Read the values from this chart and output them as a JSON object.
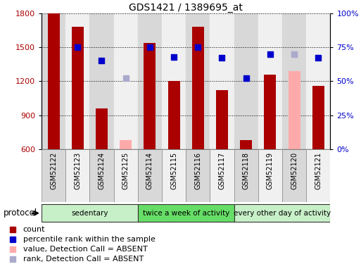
{
  "title": "GDS1421 / 1389695_at",
  "samples": [
    "GSM52122",
    "GSM52123",
    "GSM52124",
    "GSM52125",
    "GSM52114",
    "GSM52115",
    "GSM52116",
    "GSM52117",
    "GSM52118",
    "GSM52119",
    "GSM52120",
    "GSM52121"
  ],
  "count_values": [
    1800,
    1680,
    960,
    null,
    1540,
    1200,
    1680,
    1120,
    680,
    1260,
    null,
    1160
  ],
  "count_absent_values": [
    null,
    null,
    null,
    680,
    null,
    null,
    null,
    null,
    null,
    null,
    1290,
    null
  ],
  "rank_values": [
    null,
    75,
    65,
    null,
    75,
    68,
    75,
    67,
    52,
    70,
    null,
    67
  ],
  "rank_absent_values": [
    null,
    null,
    null,
    52,
    null,
    null,
    null,
    null,
    null,
    null,
    70,
    null
  ],
  "ylim_left": [
    600,
    1800
  ],
  "ylim_right": [
    0,
    100
  ],
  "yticks_left": [
    600,
    900,
    1200,
    1500,
    1800
  ],
  "yticks_right": [
    0,
    25,
    50,
    75,
    100
  ],
  "ytick_labels_right": [
    "0%",
    "25%",
    "50%",
    "75%",
    "100%"
  ],
  "groups": [
    {
      "label": "sedentary",
      "start": 0,
      "end": 3,
      "color": "#c8f0c8"
    },
    {
      "label": "twice a week of activity",
      "start": 4,
      "end": 7,
      "color": "#66dd66"
    },
    {
      "label": "every other day of activity",
      "start": 8,
      "end": 11,
      "color": "#c8f0c8"
    }
  ],
  "col_bg_even": "#d8d8d8",
  "col_bg_odd": "#f0f0f0",
  "count_color": "#aa0000",
  "count_absent_color": "#ffaaaa",
  "rank_color": "#0000cc",
  "rank_absent_color": "#aaaacc",
  "grid_color": "#000000",
  "bg_color": "#ffffff",
  "legend_items": [
    {
      "label": "count",
      "color": "#aa0000"
    },
    {
      "label": "percentile rank within the sample",
      "color": "#0000cc"
    },
    {
      "label": "value, Detection Call = ABSENT",
      "color": "#ffaaaa"
    },
    {
      "label": "rank, Detection Call = ABSENT",
      "color": "#aaaacc"
    }
  ],
  "protocol_label": "protocol"
}
